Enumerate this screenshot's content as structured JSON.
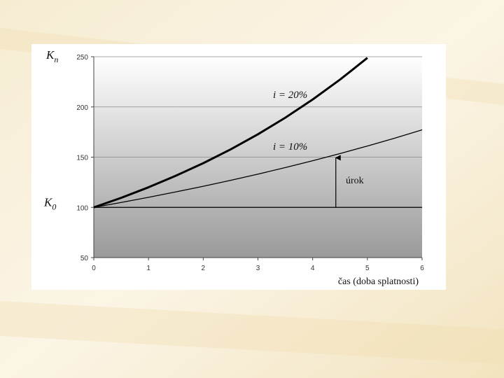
{
  "chart_data": {
    "type": "line",
    "y_label": {
      "main": "K",
      "sub": "n"
    },
    "k0_label": {
      "main": "K",
      "sub": "0"
    },
    "x_label": "čas (doba splatnosti)",
    "annotations": [
      "úrok"
    ],
    "x": [
      0,
      0.5,
      1,
      1.5,
      2,
      2.5,
      3,
      3.5,
      4,
      4.5,
      5,
      5.5,
      6
    ],
    "series": [
      {
        "name": "i = 20%",
        "color": "#000000",
        "values": [
          100,
          109.5,
          120,
          131.5,
          144,
          157.7,
          172.8,
          189.3,
          207.4,
          227.2,
          248.8,
          null,
          null
        ]
      },
      {
        "name": "i = 10%",
        "color": "#000000",
        "values": [
          100,
          104.9,
          110,
          115.4,
          121,
          126.9,
          133.1,
          139.6,
          146.4,
          153.6,
          161.1,
          168.9,
          177.2
        ]
      }
    ],
    "xlim": [
      0,
      6
    ],
    "xticks": [
      0,
      1,
      2,
      3,
      4,
      5,
      6
    ],
    "ylim": [
      50,
      250
    ],
    "yticks": [
      50,
      100,
      150,
      200,
      250
    ],
    "grid": true
  }
}
